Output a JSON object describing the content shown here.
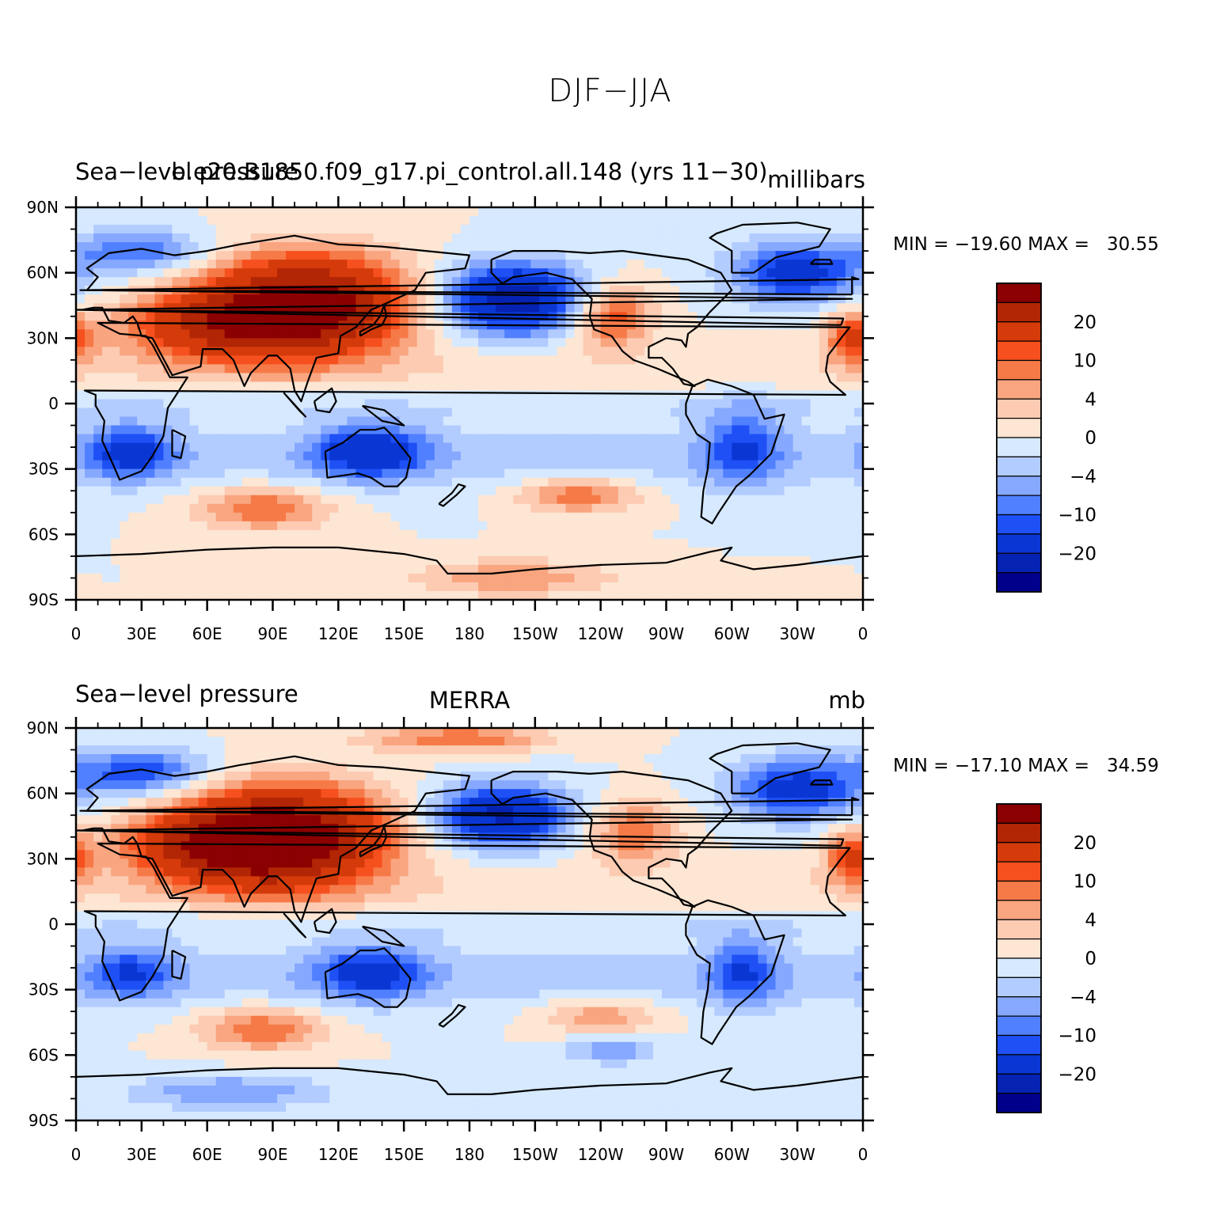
{
  "figure": {
    "title": "DJF−JJA"
  },
  "axes": {
    "lat_ticks": [
      "90N",
      "60N",
      "30N",
      "0",
      "30S",
      "60S",
      "90S"
    ],
    "lon_ticks": [
      "0",
      "30E",
      "60E",
      "90E",
      "120E",
      "150E",
      "180",
      "150W",
      "120W",
      "90W",
      "60W",
      "30W",
      "0"
    ]
  },
  "colorbar": {
    "colors": [
      "#8b0000",
      "#b22505",
      "#d43a0a",
      "#f5501e",
      "#f67a48",
      "#f9a580",
      "#fccbb2",
      "#fde6d3",
      "#d6e9ff",
      "#b3ccff",
      "#86a8ff",
      "#5080ff",
      "#1e50f5",
      "#0a37d4",
      "#0522b2",
      "#00008b"
    ],
    "labels": [
      {
        "text": "20",
        "index": 2
      },
      {
        "text": "10",
        "index": 4
      },
      {
        "text": "4",
        "index": 6
      },
      {
        "text": "0",
        "index": 8
      },
      {
        "text": "−4",
        "index": 10
      },
      {
        "text": "−10",
        "index": 12
      },
      {
        "text": "−20",
        "index": 14
      }
    ]
  },
  "panels": [
    {
      "left_title": "Sea−level pressure",
      "center_title": "b.e20.B1850.f09_g17.pi_control.all.148 (yrs 11−30)",
      "right_title": "millibars",
      "minmax": "MIN = −19.60 MAX =   30.55",
      "min": -19.6,
      "max": 30.55
    },
    {
      "left_title": "Sea−level pressure",
      "center_title": "MERRA",
      "right_title": "mb",
      "minmax": "MIN = −17.10 MAX =   34.59",
      "min": -17.1,
      "max": 34.59
    }
  ],
  "chart_data": {
    "type": "heatmap",
    "title": "DJF−JJA",
    "x_range": [
      0,
      360
    ],
    "y_range": [
      -90,
      90
    ],
    "contour_levels": [
      -20,
      -15,
      -10,
      -8,
      -6,
      -4,
      -2,
      0,
      2,
      4,
      6,
      8,
      10,
      15,
      20
    ],
    "maps": [
      {
        "name": "b.e20.B1850.f09_g17.pi_control.all.148 (yrs 11−30)",
        "units": "millibars",
        "min": -19.6,
        "max": 30.55,
        "features": [
          {
            "lon": 105,
            "lat": 45,
            "value": 25,
            "rx": 45,
            "ry": 22
          },
          {
            "lon": 60,
            "lat": 35,
            "value": 12,
            "rx": 40,
            "ry": 15
          },
          {
            "lon": 200,
            "lat": 48,
            "value": -18,
            "rx": 32,
            "ry": 16
          },
          {
            "lon": 330,
            "lat": 60,
            "value": -12,
            "rx": 30,
            "ry": 14
          },
          {
            "lon": 245,
            "lat": 40,
            "value": 10,
            "rx": 18,
            "ry": 14
          },
          {
            "lon": 355,
            "lat": 30,
            "value": 10,
            "rx": 12,
            "ry": 12
          },
          {
            "lon": 25,
            "lat": -22,
            "value": -10,
            "rx": 20,
            "ry": 12
          },
          {
            "lon": 135,
            "lat": -22,
            "value": -12,
            "rx": 25,
            "ry": 12
          },
          {
            "lon": 305,
            "lat": -20,
            "value": -8,
            "rx": 18,
            "ry": 18
          },
          {
            "lon": 85,
            "lat": -48,
            "value": 8,
            "rx": 30,
            "ry": 10
          },
          {
            "lon": 230,
            "lat": -42,
            "value": 8,
            "rx": 28,
            "ry": 8
          },
          {
            "lon": 200,
            "lat": -80,
            "value": 6,
            "rx": 45,
            "ry": 8
          },
          {
            "lon": 30,
            "lat": 70,
            "value": -8,
            "rx": 30,
            "ry": 10
          }
        ]
      },
      {
        "name": "MERRA",
        "units": "mb",
        "min": -17.1,
        "max": 34.59,
        "features": [
          {
            "lon": 95,
            "lat": 40,
            "value": 26,
            "rx": 45,
            "ry": 22
          },
          {
            "lon": 60,
            "lat": 35,
            "value": 12,
            "rx": 40,
            "ry": 15
          },
          {
            "lon": 195,
            "lat": 50,
            "value": -16,
            "rx": 30,
            "ry": 14
          },
          {
            "lon": 330,
            "lat": 62,
            "value": -12,
            "rx": 30,
            "ry": 14
          },
          {
            "lon": 255,
            "lat": 42,
            "value": 8,
            "rx": 20,
            "ry": 14
          },
          {
            "lon": 175,
            "lat": 85,
            "value": 8,
            "rx": 40,
            "ry": 6
          },
          {
            "lon": 355,
            "lat": 30,
            "value": 10,
            "rx": 12,
            "ry": 12
          },
          {
            "lon": 25,
            "lat": -22,
            "value": -8,
            "rx": 20,
            "ry": 12
          },
          {
            "lon": 135,
            "lat": -22,
            "value": -10,
            "rx": 25,
            "ry": 12
          },
          {
            "lon": 305,
            "lat": -22,
            "value": -8,
            "rx": 16,
            "ry": 16
          },
          {
            "lon": 85,
            "lat": -48,
            "value": 8,
            "rx": 28,
            "ry": 10
          },
          {
            "lon": 240,
            "lat": -42,
            "value": 6,
            "rx": 28,
            "ry": 8
          },
          {
            "lon": 245,
            "lat": -58,
            "value": -6,
            "rx": 20,
            "ry": 6
          },
          {
            "lon": 70,
            "lat": -77,
            "value": -6,
            "rx": 45,
            "ry": 8
          },
          {
            "lon": 30,
            "lat": 70,
            "value": -10,
            "rx": 30,
            "ry": 10
          }
        ]
      }
    ]
  }
}
